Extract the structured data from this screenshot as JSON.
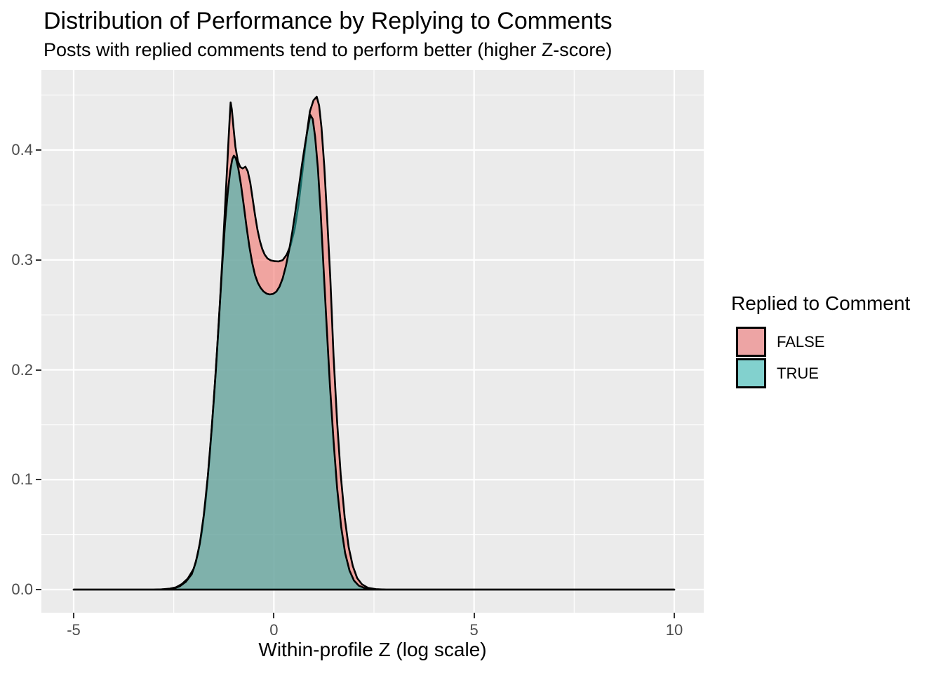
{
  "title": "Distribution of Performance by Replying to Comments",
  "subtitle": "Posts with replied comments tend to perform better (higher Z-score)",
  "chart_data": {
    "type": "area",
    "title": "Distribution of Performance by Replying to Comments",
    "subtitle": "Posts with replied comments tend to perform better (higher Z-score)",
    "xlabel": "Within-profile Z (log scale)",
    "ylabel": "",
    "xlim": [
      -5,
      10
    ],
    "ylim": [
      0,
      0.4725
    ],
    "grid": true,
    "panel_bg": "#EBEBEB",
    "grid_color": "#FFFFFF",
    "x_ticks": [
      {
        "v": -5,
        "label": "-5"
      },
      {
        "v": 0,
        "label": "0"
      },
      {
        "v": 5,
        "label": "5"
      },
      {
        "v": 10,
        "label": "10"
      }
    ],
    "y_ticks": [
      {
        "v": 0.0,
        "label": "0.0"
      },
      {
        "v": 0.1,
        "label": "0.1"
      },
      {
        "v": 0.2,
        "label": "0.2"
      },
      {
        "v": 0.3,
        "label": "0.3"
      },
      {
        "v": 0.4,
        "label": "0.4"
      }
    ],
    "x_minor": [
      -2.5,
      2.5,
      7.5
    ],
    "y_minor": [
      0.05,
      0.15,
      0.25,
      0.35,
      0.45
    ],
    "legend": {
      "title": "Replied to Comment",
      "position": "right",
      "entries": [
        {
          "label": "FALSE",
          "swatch_color": "#EDA4A4"
        },
        {
          "label": "TRUE",
          "swatch_color": "#82D1CE"
        }
      ]
    },
    "series": [
      {
        "name": "FALSE",
        "fill": "rgba(244,116,110,0.60)",
        "stroke": "#000000",
        "stroke_width": 2.6,
        "peak1": {
          "x": -1.08,
          "y": 0.4434
        },
        "valley": {
          "x": 0.12,
          "y": 0.2986
        },
        "peak2": {
          "x": 1.07,
          "y": 0.4485
        },
        "points": [
          [
            -5,
            0
          ],
          [
            -4.5,
            0
          ],
          [
            -4,
            0
          ],
          [
            -3.5,
            0
          ],
          [
            -3,
            0
          ],
          [
            -2.8,
            0.0002
          ],
          [
            -2.6,
            0.0008
          ],
          [
            -2.45,
            0.002
          ],
          [
            -2.3,
            0.005
          ],
          [
            -2.15,
            0.01
          ],
          [
            -2.0,
            0.019
          ],
          [
            -1.9,
            0.032
          ],
          [
            -1.8,
            0.052
          ],
          [
            -1.7,
            0.082
          ],
          [
            -1.6,
            0.123
          ],
          [
            -1.5,
            0.172
          ],
          [
            -1.42,
            0.217
          ],
          [
            -1.34,
            0.266
          ],
          [
            -1.27,
            0.313
          ],
          [
            -1.2,
            0.362
          ],
          [
            -1.14,
            0.404
          ],
          [
            -1.1,
            0.432
          ],
          [
            -1.08,
            0.4434
          ],
          [
            -1.05,
            0.437
          ],
          [
            -1.01,
            0.421
          ],
          [
            -0.96,
            0.403
          ],
          [
            -0.9,
            0.39
          ],
          [
            -0.84,
            0.3845
          ],
          [
            -0.78,
            0.3832
          ],
          [
            -0.71,
            0.3848
          ],
          [
            -0.65,
            0.3805
          ],
          [
            -0.59,
            0.3702
          ],
          [
            -0.53,
            0.3556
          ],
          [
            -0.47,
            0.3408
          ],
          [
            -0.41,
            0.3277
          ],
          [
            -0.35,
            0.3173
          ],
          [
            -0.29,
            0.3099
          ],
          [
            -0.23,
            0.3049
          ],
          [
            -0.16,
            0.3014
          ],
          [
            -0.08,
            0.2996
          ],
          [
            0.02,
            0.2988
          ],
          [
            0.12,
            0.2986
          ],
          [
            0.22,
            0.2998
          ],
          [
            0.32,
            0.3048
          ],
          [
            0.42,
            0.3135
          ],
          [
            0.52,
            0.3282
          ],
          [
            0.62,
            0.3512
          ],
          [
            0.72,
            0.3822
          ],
          [
            0.82,
            0.4142
          ],
          [
            0.9,
            0.4352
          ],
          [
            0.99,
            0.4452
          ],
          [
            1.07,
            0.4485
          ],
          [
            1.13,
            0.4405
          ],
          [
            1.19,
            0.4205
          ],
          [
            1.26,
            0.385
          ],
          [
            1.33,
            0.339
          ],
          [
            1.41,
            0.283
          ],
          [
            1.49,
            0.2125
          ],
          [
            1.58,
            0.1525
          ],
          [
            1.67,
            0.1045
          ],
          [
            1.77,
            0.0655
          ],
          [
            1.87,
            0.0385
          ],
          [
            1.97,
            0.0215
          ],
          [
            2.08,
            0.0105
          ],
          [
            2.2,
            0.0048
          ],
          [
            2.35,
            0.0016
          ],
          [
            2.55,
            0.0004
          ],
          [
            2.8,
            0
          ],
          [
            3.5,
            0
          ],
          [
            4.5,
            0
          ],
          [
            6,
            0
          ],
          [
            8,
            0
          ],
          [
            10,
            0
          ]
        ]
      },
      {
        "name": "TRUE",
        "fill": "rgba(40,187,179,0.57)",
        "stroke": "#000000",
        "stroke_width": 2.6,
        "peak1": {
          "x": -1.0,
          "y": 0.3949
        },
        "valley": {
          "x": -0.05,
          "y": 0.2686
        },
        "peak2": {
          "x": 0.91,
          "y": 0.4319
        },
        "points": [
          [
            -5,
            0
          ],
          [
            -4.5,
            0
          ],
          [
            -4,
            0
          ],
          [
            -3.5,
            0
          ],
          [
            -3,
            0
          ],
          [
            -2.7,
            0.0003
          ],
          [
            -2.5,
            0.001
          ],
          [
            -2.35,
            0.003
          ],
          [
            -2.2,
            0.007
          ],
          [
            -2.05,
            0.014
          ],
          [
            -1.95,
            0.025
          ],
          [
            -1.85,
            0.042
          ],
          [
            -1.75,
            0.068
          ],
          [
            -1.65,
            0.103
          ],
          [
            -1.55,
            0.148
          ],
          [
            -1.45,
            0.199
          ],
          [
            -1.37,
            0.247
          ],
          [
            -1.29,
            0.295
          ],
          [
            -1.22,
            0.333
          ],
          [
            -1.15,
            0.362
          ],
          [
            -1.09,
            0.381
          ],
          [
            -1.04,
            0.3915
          ],
          [
            -1.0,
            0.3949
          ],
          [
            -0.95,
            0.3925
          ],
          [
            -0.89,
            0.3838
          ],
          [
            -0.82,
            0.3682
          ],
          [
            -0.75,
            0.3492
          ],
          [
            -0.68,
            0.3295
          ],
          [
            -0.61,
            0.3118
          ],
          [
            -0.54,
            0.2972
          ],
          [
            -0.47,
            0.2862
          ],
          [
            -0.4,
            0.2791
          ],
          [
            -0.33,
            0.2745
          ],
          [
            -0.26,
            0.2713
          ],
          [
            -0.18,
            0.2693
          ],
          [
            -0.1,
            0.2686
          ],
          [
            -0.02,
            0.2691
          ],
          [
            0.06,
            0.2711
          ],
          [
            0.14,
            0.2756
          ],
          [
            0.22,
            0.2832
          ],
          [
            0.3,
            0.2945
          ],
          [
            0.38,
            0.3085
          ],
          [
            0.46,
            0.3255
          ],
          [
            0.54,
            0.3445
          ],
          [
            0.62,
            0.3652
          ],
          [
            0.7,
            0.3862
          ],
          [
            0.78,
            0.4052
          ],
          [
            0.85,
            0.4202
          ],
          [
            0.91,
            0.4319
          ],
          [
            0.97,
            0.4282
          ],
          [
            1.03,
            0.4122
          ],
          [
            1.1,
            0.3832
          ],
          [
            1.17,
            0.3422
          ],
          [
            1.24,
            0.2932
          ],
          [
            1.32,
            0.2382
          ],
          [
            1.4,
            0.1862
          ],
          [
            1.49,
            0.1352
          ],
          [
            1.58,
            0.0922
          ],
          [
            1.68,
            0.0572
          ],
          [
            1.78,
            0.0332
          ],
          [
            1.89,
            0.0172
          ],
          [
            2.0,
            0.0082
          ],
          [
            2.12,
            0.0036
          ],
          [
            2.28,
            0.0012
          ],
          [
            2.5,
            0.0003
          ],
          [
            2.8,
            0
          ],
          [
            3.5,
            0
          ],
          [
            4.5,
            0
          ],
          [
            6,
            0
          ],
          [
            8,
            0
          ],
          [
            10,
            0
          ]
        ]
      }
    ]
  },
  "axes": {
    "x_title": "Within-profile Z (log scale)"
  }
}
